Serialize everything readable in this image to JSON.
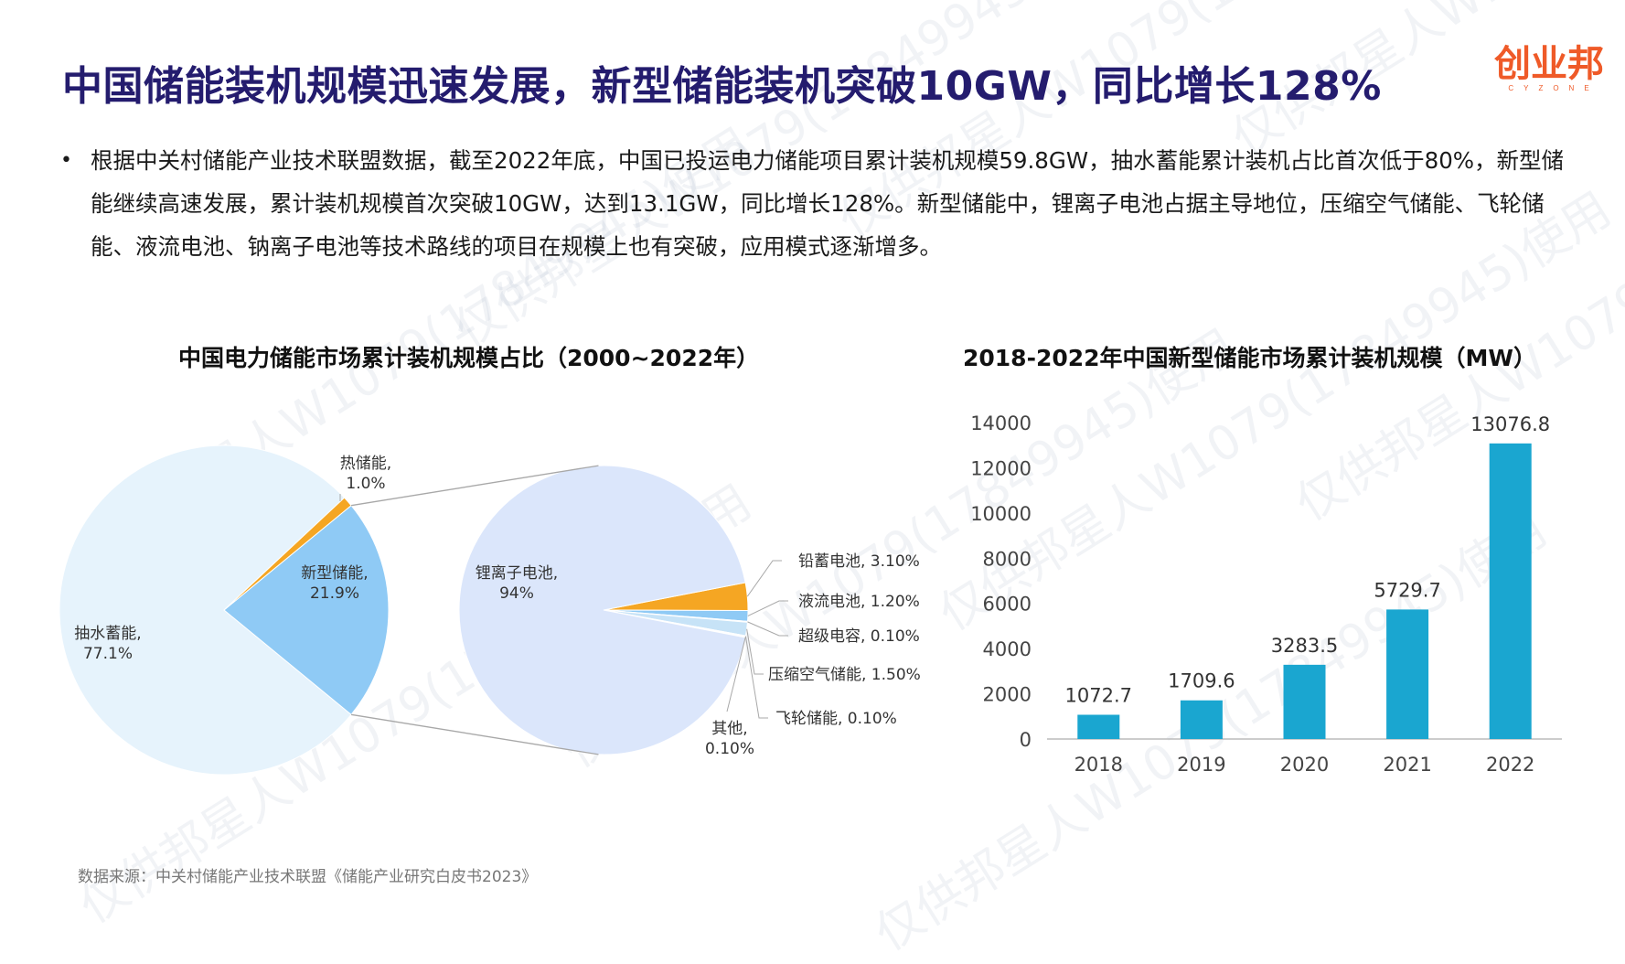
{
  "title": "中国储能装机规模迅速发展，新型储能装机突破10GW，同比增长128%",
  "logo": {
    "main": "创业邦",
    "sub": "CYZONE"
  },
  "summary": {
    "bullet": "•",
    "text": "根据中关村储能产业技术联盟数据，截至2022年底，中国已投运电力储能项目累计装机规模59.8GW，抽水蓄能累计装机占比首次低于80%，新型储能继续高速发展，累计装机规模首次突破10GW，达到13.1GW，同比增长128%。新型储能中，锂离子电池占据主导地位，压缩空气储能、飞轮储能、液流电池、钠离子电池等技术路线的项目在规模上也有突破，应用模式逐渐增多。"
  },
  "watermark": "仅供邦星人W1079(17849945)使用",
  "source": "数据来源：中关村储能产业技术联盟《储能产业研究白皮书2023》",
  "colors": {
    "title": "#241c6e",
    "pie_pumped": "#e6f3fc",
    "pie_new": "#8fcaf5",
    "pie_thermal": "#f5a623",
    "pie_lithium": "#dbe6fb",
    "pie_lead": "#f5a623",
    "pie_flow": "#8fcaf5",
    "pie_small": "#c7e3f7",
    "bar": "#1aa6d0"
  },
  "chart_data": [
    {
      "type": "pie",
      "title": "中国电力储能市场累计装机规模占比（2000~2022年）",
      "slices": [
        {
          "label": "抽水蓄能,",
          "pct_label": "77.1%",
          "value": 77.1
        },
        {
          "label": "新型储能,",
          "pct_label": "21.9%",
          "value": 21.9
        },
        {
          "label": "热储能,",
          "pct_label": "1.0%",
          "value": 1.0
        }
      ],
      "breakdown": {
        "parent": "新型储能",
        "slices": [
          {
            "label": "锂离子电池,",
            "pct_label": "94%",
            "value": 94.0
          },
          {
            "label": "铅蓄电池, 3.10%",
            "value": 3.1
          },
          {
            "label": "液流电池, 1.20%",
            "value": 1.2
          },
          {
            "label": "超级电容, 0.10%",
            "value": 0.1
          },
          {
            "label": "压缩空气储能, 1.50%",
            "value": 1.5
          },
          {
            "label": "飞轮储能, 0.10%",
            "value": 0.1
          },
          {
            "label": "其他,",
            "pct_label": "0.10%",
            "value": 0.1
          }
        ]
      }
    },
    {
      "type": "bar",
      "title": "2018-2022年中国新型储能市场累计装机规模（MW）",
      "categories": [
        "2018",
        "2019",
        "2020",
        "2021",
        "2022"
      ],
      "values": [
        1072.7,
        1709.6,
        3283.5,
        5729.7,
        13076.8
      ],
      "value_labels": [
        "1072.7",
        "1709.6",
        "3283.5",
        "5729.7",
        "13076.8"
      ],
      "y_ticks": [
        0,
        2000,
        4000,
        6000,
        8000,
        10000,
        12000,
        14000
      ],
      "ylim": [
        0,
        14000
      ],
      "grid": false
    }
  ]
}
